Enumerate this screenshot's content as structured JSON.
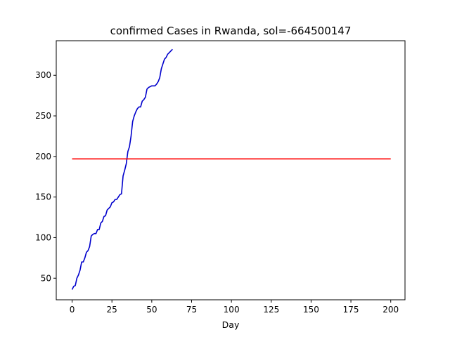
{
  "chart_data": {
    "type": "line",
    "title": "confirmed Cases in Rwanda, sol=-664500147",
    "xlabel": "Day",
    "ylabel": "",
    "xlim": [
      -9.95,
      208.95
    ],
    "ylim": [
      23.4,
      342.6
    ],
    "xticks": [
      0,
      25,
      50,
      75,
      100,
      125,
      150,
      175,
      200
    ],
    "yticks": [
      50,
      100,
      150,
      200,
      250,
      300
    ],
    "grid": false,
    "legend": "none",
    "series": [
      {
        "color": "#0000cc",
        "x": [
          0,
          1,
          2,
          3,
          4,
          5,
          6,
          7,
          8,
          9,
          10,
          11,
          12,
          13,
          14,
          15,
          16,
          17,
          18,
          19,
          20,
          21,
          22,
          23,
          24,
          25,
          26,
          27,
          28,
          29,
          30,
          31,
          32,
          33,
          34,
          35,
          36,
          37,
          38,
          39,
          40,
          41,
          42,
          43,
          44,
          45,
          46,
          47,
          48,
          49,
          50,
          51,
          52,
          53,
          54,
          55,
          56,
          57,
          58,
          59,
          60,
          61,
          62,
          63
        ],
        "y": [
          36,
          40,
          41,
          50,
          54,
          60,
          70,
          70,
          75,
          82,
          84,
          89,
          102,
          104,
          105,
          105,
          110,
          110,
          118,
          120,
          126,
          127,
          134,
          136,
          138,
          143,
          144,
          147,
          147,
          150,
          153,
          154,
          176,
          183,
          191,
          206,
          212,
          225,
          243,
          250,
          255,
          259,
          261,
          261,
          268,
          270,
          273,
          283,
          285,
          286,
          287,
          287,
          287,
          289,
          292,
          297,
          308,
          314,
          320,
          322,
          326,
          328,
          330,
          332
        ]
      },
      {
        "color": "#ff0000",
        "x": [
          0,
          200
        ],
        "y": [
          197,
          197
        ]
      }
    ]
  }
}
